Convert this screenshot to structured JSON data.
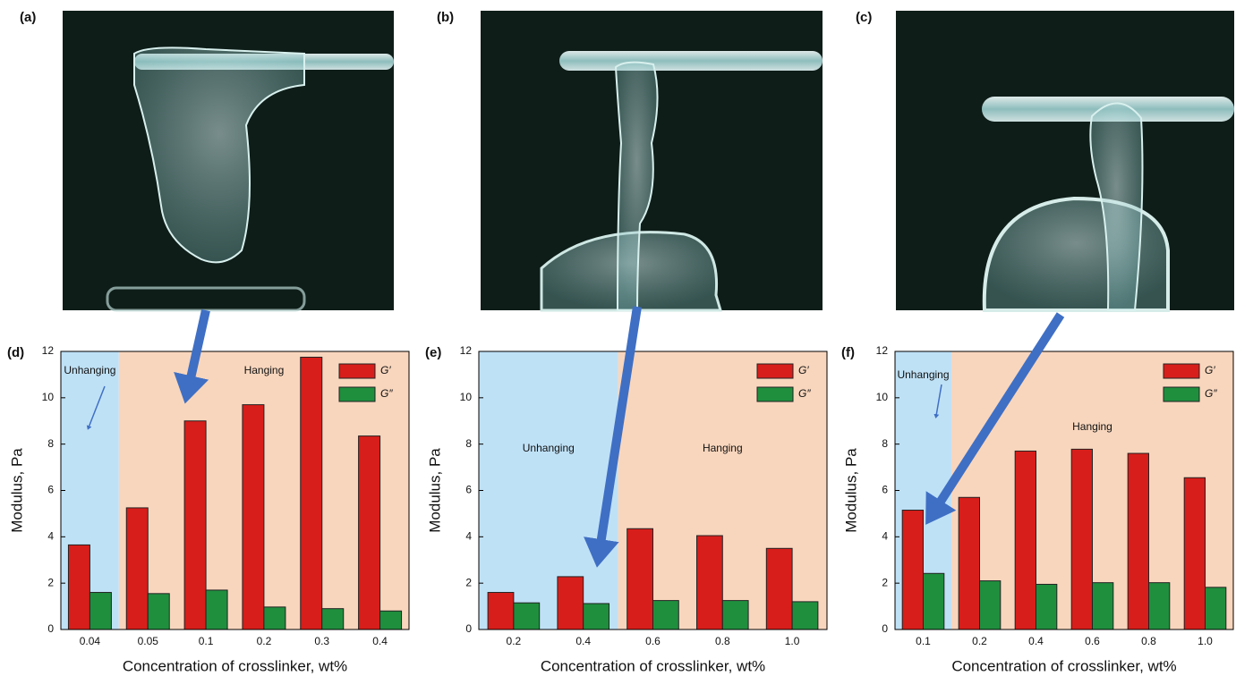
{
  "photo_panels": [
    {
      "label": "(a)"
    },
    {
      "label": "(b)"
    },
    {
      "label": "(c)"
    }
  ],
  "chart_data": [
    {
      "type": "bar",
      "panel_label": "(d)",
      "y_label": "Modulus, Pa",
      "x_label": "Concentration of crosslinker, wt%",
      "categories": [
        "0.04",
        "0.05",
        "0.1",
        "0.2",
        "0.3",
        "0.4"
      ],
      "series": [
        {
          "name": "G′",
          "color": "#d81e1a",
          "values": [
            3.65,
            5.25,
            9.0,
            9.7,
            11.75,
            8.35
          ]
        },
        {
          "name": "G″",
          "color": "#1f8f3e",
          "values": [
            1.6,
            1.55,
            1.7,
            0.97,
            0.9,
            0.8
          ]
        }
      ],
      "ylim": [
        0,
        12
      ],
      "yticks": [
        0,
        2,
        4,
        6,
        8,
        10,
        12
      ],
      "regions": [
        {
          "label": "Unhanging",
          "color": "#bfe1f6",
          "count": 1
        },
        {
          "label": "Hanging",
          "color": "#f8d6bd",
          "count": 5
        }
      ],
      "legend": "upper right"
    },
    {
      "type": "bar",
      "panel_label": "(e)",
      "y_label": "Modulus, Pa",
      "x_label": "Concentration of crosslinker, wt%",
      "categories": [
        "0.2",
        "0.4",
        "0.6",
        "0.8",
        "1.0"
      ],
      "series": [
        {
          "name": "G′",
          "color": "#d81e1a",
          "values": [
            1.6,
            2.28,
            4.35,
            4.05,
            3.5
          ]
        },
        {
          "name": "G″",
          "color": "#1f8f3e",
          "values": [
            1.15,
            1.12,
            1.25,
            1.25,
            1.2
          ]
        }
      ],
      "ylim": [
        0,
        12
      ],
      "yticks": [
        0,
        2,
        4,
        6,
        8,
        10,
        12
      ],
      "regions": [
        {
          "label": "Unhanging",
          "color": "#bfe1f6",
          "count": 2
        },
        {
          "label": "Hanging",
          "color": "#f8d6bd",
          "count": 3
        }
      ],
      "legend": "upper right"
    },
    {
      "type": "bar",
      "panel_label": "(f)",
      "y_label": "Modulus, Pa",
      "x_label": "Concentration of crosslinker, wt%",
      "categories": [
        "0.1",
        "0.2",
        "0.4",
        "0.6",
        "0.8",
        "1.0"
      ],
      "series": [
        {
          "name": "G′",
          "color": "#d81e1a",
          "values": [
            5.15,
            5.7,
            7.7,
            7.78,
            7.6,
            6.55
          ]
        },
        {
          "name": "G″",
          "color": "#1f8f3e",
          "values": [
            2.42,
            2.1,
            1.95,
            2.02,
            2.02,
            1.82
          ]
        }
      ],
      "ylim": [
        0,
        12
      ],
      "yticks": [
        0,
        2,
        4,
        6,
        8,
        10,
        12
      ],
      "regions": [
        {
          "label": "Unhanging",
          "color": "#bfe1f6",
          "count": 1
        },
        {
          "label": "Hanging",
          "color": "#f8d6bd",
          "count": 5
        }
      ],
      "legend": "upper right"
    }
  ]
}
